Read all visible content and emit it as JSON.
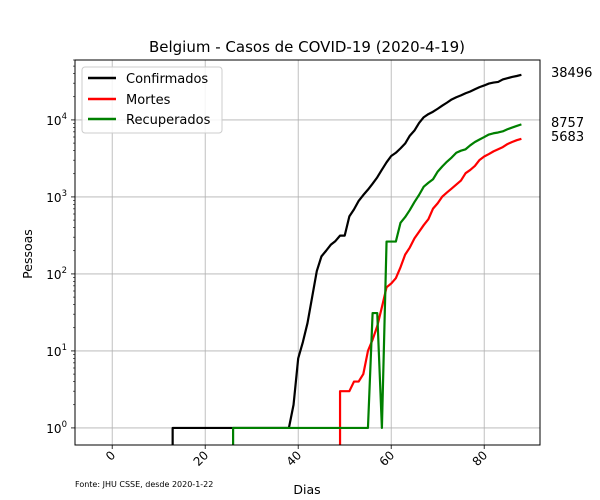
{
  "chart_data": {
    "type": "line",
    "title": "Belgium - Casos de COVID-19 (2020-4-19)",
    "xlabel": "Dias",
    "ylabel": "Pessoas",
    "xlim": [
      -8,
      92
    ],
    "ylim": [
      0.6,
      60000
    ],
    "yscale": "log",
    "grid": true,
    "legend_position": "top-left",
    "source_note": "Fonte: JHU CSSE, desde 2020-1-22",
    "x_ticks": [
      0,
      20,
      40,
      60,
      80
    ],
    "x_tick_labels": [
      "0",
      "20",
      "40",
      "60",
      "80"
    ],
    "y_ticks": [
      1,
      10,
      100,
      1000,
      10000
    ],
    "y_tick_labels": [
      {
        "base": "10",
        "exp": "0"
      },
      {
        "base": "10",
        "exp": "1"
      },
      {
        "base": "10",
        "exp": "2"
      },
      {
        "base": "10",
        "exp": "3"
      },
      {
        "base": "10",
        "exp": "4"
      }
    ],
    "end_labels": [
      "38496",
      "8757",
      "5683"
    ],
    "series": [
      {
        "name": "Confirmados",
        "color": "#000000",
        "points": [
          [
            13,
            0.6
          ],
          [
            13,
            1
          ],
          [
            37,
            1
          ],
          [
            38,
            1
          ],
          [
            39,
            2
          ],
          [
            40,
            8
          ],
          [
            41,
            13
          ],
          [
            42,
            23
          ],
          [
            43,
            50
          ],
          [
            44,
            109
          ],
          [
            45,
            169
          ],
          [
            46,
            200
          ],
          [
            47,
            239
          ],
          [
            48,
            267
          ],
          [
            49,
            314
          ],
          [
            50,
            314
          ],
          [
            51,
            559
          ],
          [
            52,
            689
          ],
          [
            53,
            886
          ],
          [
            54,
            1058
          ],
          [
            55,
            1243
          ],
          [
            56,
            1486
          ],
          [
            57,
            1795
          ],
          [
            58,
            2257
          ],
          [
            59,
            2815
          ],
          [
            60,
            3401
          ],
          [
            61,
            3743
          ],
          [
            62,
            4269
          ],
          [
            63,
            4937
          ],
          [
            64,
            6235
          ],
          [
            65,
            7284
          ],
          [
            66,
            9134
          ],
          [
            67,
            10836
          ],
          [
            68,
            11899
          ],
          [
            69,
            12775
          ],
          [
            70,
            13964
          ],
          [
            71,
            15348
          ],
          [
            72,
            16770
          ],
          [
            73,
            18431
          ],
          [
            74,
            19691
          ],
          [
            75,
            20814
          ],
          [
            76,
            22194
          ],
          [
            77,
            23403
          ],
          [
            78,
            24983
          ],
          [
            79,
            26667
          ],
          [
            80,
            28018
          ],
          [
            81,
            29647
          ],
          [
            82,
            30589
          ],
          [
            83,
            31119
          ],
          [
            84,
            33573
          ],
          [
            85,
            34809
          ],
          [
            86,
            36138
          ],
          [
            87,
            37183
          ],
          [
            88,
            38496
          ]
        ]
      },
      {
        "name": "Mortes",
        "color": "#ff0000",
        "points": [
          [
            49,
            0.6
          ],
          [
            49,
            3
          ],
          [
            51,
            3
          ],
          [
            52,
            4
          ],
          [
            53,
            4
          ],
          [
            54,
            5
          ],
          [
            55,
            10
          ],
          [
            56,
            14
          ],
          [
            57,
            21
          ],
          [
            58,
            37
          ],
          [
            59,
            67
          ],
          [
            60,
            75
          ],
          [
            61,
            88
          ],
          [
            62,
            122
          ],
          [
            63,
            178
          ],
          [
            64,
            220
          ],
          [
            65,
            289
          ],
          [
            66,
            353
          ],
          [
            67,
            431
          ],
          [
            68,
            513
          ],
          [
            69,
            705
          ],
          [
            70,
            828
          ],
          [
            71,
            1011
          ],
          [
            72,
            1143
          ],
          [
            73,
            1283
          ],
          [
            74,
            1447
          ],
          [
            75,
            1632
          ],
          [
            76,
            2035
          ],
          [
            77,
            2240
          ],
          [
            78,
            2523
          ],
          [
            79,
            3019
          ],
          [
            80,
            3346
          ],
          [
            81,
            3600
          ],
          [
            82,
            3903
          ],
          [
            83,
            4157
          ],
          [
            84,
            4440
          ],
          [
            85,
            4857
          ],
          [
            86,
            5163
          ],
          [
            87,
            5453
          ],
          [
            88,
            5683
          ]
        ]
      },
      {
        "name": "Recuperados",
        "color": "#008000",
        "points": [
          [
            26,
            0.6
          ],
          [
            26,
            1
          ],
          [
            55,
            1
          ],
          [
            56,
            31
          ],
          [
            57,
            31
          ],
          [
            58,
            1
          ],
          [
            59,
            263
          ],
          [
            60,
            263
          ],
          [
            61,
            263
          ],
          [
            62,
            461
          ],
          [
            63,
            547
          ],
          [
            64,
            675
          ],
          [
            65,
            858
          ],
          [
            66,
            1063
          ],
          [
            67,
            1359
          ],
          [
            68,
            1527
          ],
          [
            69,
            1696
          ],
          [
            70,
            2132
          ],
          [
            71,
            2495
          ],
          [
            72,
            2872
          ],
          [
            73,
            3247
          ],
          [
            74,
            3751
          ],
          [
            75,
            3986
          ],
          [
            76,
            4157
          ],
          [
            77,
            4681
          ],
          [
            78,
            5164
          ],
          [
            79,
            5568
          ],
          [
            80,
            5986
          ],
          [
            81,
            6463
          ],
          [
            82,
            6707
          ],
          [
            83,
            6868
          ],
          [
            84,
            7107
          ],
          [
            85,
            7562
          ],
          [
            86,
            7961
          ],
          [
            87,
            8348
          ],
          [
            88,
            8757
          ]
        ]
      }
    ]
  }
}
